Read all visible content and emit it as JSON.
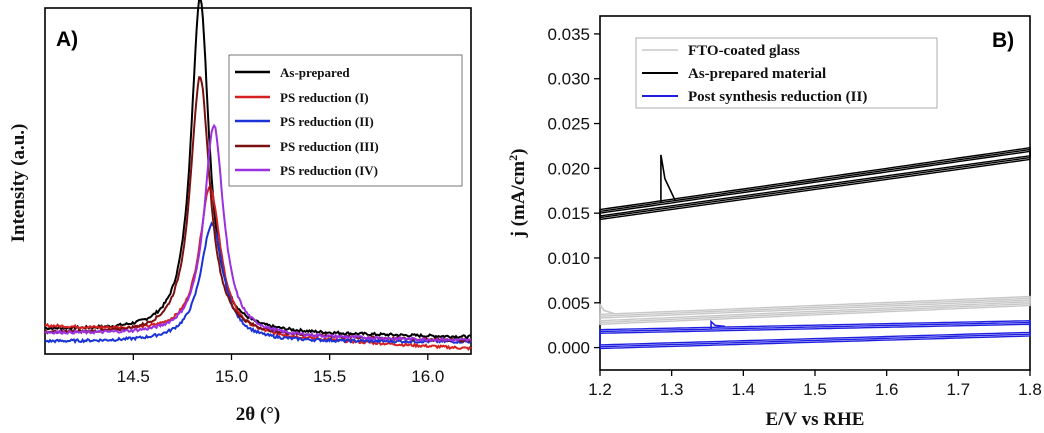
{
  "chart_data": [
    {
      "type": "line",
      "panel_label": "A)",
      "xlabel": "2θ (°)",
      "ylabel": "Intensity (a.u.)",
      "xlim": [
        14.05,
        16.22
      ],
      "ylim": [
        0,
        1.0
      ],
      "xticks": [
        14.5,
        15.0,
        15.5,
        16.0
      ],
      "xtick_labels": [
        "14.5",
        "15.0",
        "15.5",
        "16.0"
      ],
      "y_tick_labels_shown": false,
      "legend_position": "top-right",
      "series": [
        {
          "name": "As-prepared",
          "color": "#000000",
          "center": 14.84,
          "width": 0.055,
          "height": 0.97,
          "base": 0.07,
          "slope": -0.01
        },
        {
          "name": "PS reduction (I)",
          "color": "#d62020",
          "center": 14.89,
          "width": 0.065,
          "height": 0.43,
          "base": 0.08,
          "slope": -0.03
        },
        {
          "name": "PS reduction (II)",
          "color": "#1a33d6",
          "center": 14.9,
          "width": 0.07,
          "height": 0.34,
          "base": 0.035,
          "slope": 0.0
        },
        {
          "name": "PS reduction (III)",
          "color": "#7b1010",
          "center": 14.84,
          "width": 0.06,
          "height": 0.75,
          "base": 0.06,
          "slope": -0.01
        },
        {
          "name": "PS reduction (IV)",
          "color": "#9b30e0",
          "center": 14.91,
          "width": 0.06,
          "height": 0.61,
          "base": 0.06,
          "slope": -0.01
        }
      ]
    },
    {
      "type": "line",
      "panel_label": "B)",
      "xlabel": "E/V vs RHE",
      "ylabel": "j (mA/cm",
      "ylabel_sup": "2",
      "ylabel_end": ")",
      "xlim": [
        1.2,
        1.8
      ],
      "ylim": [
        -0.0025,
        0.037
      ],
      "xticks": [
        1.2,
        1.3,
        1.4,
        1.5,
        1.6,
        1.7,
        1.8
      ],
      "xtick_labels": [
        "1.2",
        "1.3",
        "1.4",
        "1.5",
        "1.6",
        "1.7",
        "1.8"
      ],
      "yticks": [
        0.0,
        0.005,
        0.01,
        0.015,
        0.02,
        0.025,
        0.03,
        0.035
      ],
      "ytick_labels": [
        "0.000",
        "0.005",
        "0.010",
        "0.015",
        "0.020",
        "0.025",
        "0.030",
        "0.035"
      ],
      "legend_position": "top-left",
      "series": [
        {
          "name": "FTO-coated glass",
          "color": "#c8c8c8",
          "x": [
            1.2,
            1.8
          ],
          "y_upper": [
            0.0035,
            0.0055
          ],
          "y_lower": [
            0.0028,
            0.0049
          ],
          "spike": {
            "x": 1.2,
            "y": 0.0048
          }
        },
        {
          "name": "As-prepared material",
          "color": "#000000",
          "x": [
            1.2,
            1.8
          ],
          "y_upper": [
            0.0152,
            0.0221
          ],
          "y_lower": [
            0.0145,
            0.0212
          ],
          "spike": {
            "x": 1.285,
            "y": 0.0215
          }
        },
        {
          "name": "Post synthesis reduction (II)",
          "color": "#1f1fe0",
          "x": [
            1.2,
            1.8
          ],
          "y_upper": [
            0.0018,
            0.0028
          ],
          "y_lower": [
            0.0001,
            0.0015
          ],
          "spike": {
            "x": 1.355,
            "y": 0.0029
          }
        }
      ]
    }
  ]
}
